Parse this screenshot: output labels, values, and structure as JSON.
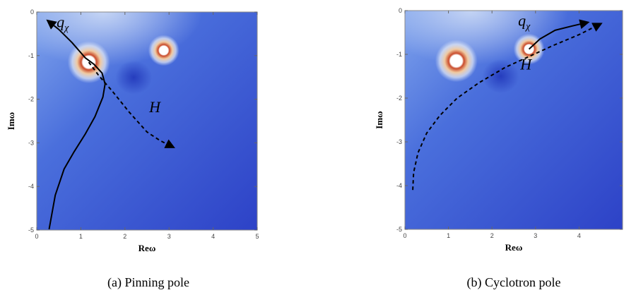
{
  "chart_data": [
    {
      "type": "heatmap",
      "caption": "(a) Pinning pole",
      "xlabel": "Reω",
      "ylabel": "Imω",
      "xlim": [
        0,
        5
      ],
      "ylim": [
        -5,
        0
      ],
      "xticks": [
        "0",
        "1",
        "2",
        "3",
        "4",
        "5"
      ],
      "yticks": [
        "0",
        "-1",
        "-2",
        "-3",
        "-4",
        "-5"
      ],
      "poles": [
        {
          "x": 1.18,
          "y": -1.15
        },
        {
          "x": 2.88,
          "y": -0.88
        }
      ],
      "dip": {
        "x": 2.2,
        "y": -1.5
      },
      "series": [
        {
          "name": "q_χ",
          "style": "solid",
          "x": [
            0.28,
            0.42,
            0.62,
            0.85,
            1.1,
            1.32,
            1.5,
            1.55,
            1.48,
            1.3,
            1.1,
            0.8,
            0.5,
            0.25
          ],
          "y": [
            -4.98,
            -4.2,
            -3.6,
            -3.2,
            -2.8,
            -2.4,
            -1.95,
            -1.65,
            -1.4,
            -1.2,
            -1.05,
            -0.7,
            -0.4,
            -0.2
          ]
        },
        {
          "name": "H",
          "style": "dashed",
          "x": [
            1.18,
            1.4,
            1.7,
            2.1,
            2.5,
            2.8,
            3.1
          ],
          "y": [
            -1.15,
            -1.45,
            -1.8,
            -2.3,
            -2.75,
            -2.95,
            -3.1
          ]
        }
      ],
      "annotations": [
        {
          "text": "q",
          "sub": "χ",
          "x": 0.45,
          "y": -0.35
        },
        {
          "text": "H",
          "x": 2.55,
          "y": -2.3
        }
      ]
    },
    {
      "type": "heatmap",
      "caption": "(b) Cyclotron pole",
      "xlabel": "Reω",
      "ylabel": "Imω",
      "xlim": [
        0,
        5
      ],
      "ylim": [
        -5,
        0
      ],
      "xticks": [
        "0",
        "1",
        "2",
        "3",
        "4"
      ],
      "yticks": [
        "0",
        "-1",
        "-2",
        "-3",
        "-4",
        "-5"
      ],
      "poles": [
        {
          "x": 1.18,
          "y": -1.15
        },
        {
          "x": 2.85,
          "y": -0.88
        }
      ],
      "dip": {
        "x": 2.2,
        "y": -1.5
      },
      "series": [
        {
          "name": "q_χ",
          "style": "solid",
          "x": [
            2.85,
            3.1,
            3.45,
            3.85,
            4.2
          ],
          "y": [
            -0.88,
            -0.65,
            -0.45,
            -0.35,
            -0.27
          ]
        },
        {
          "name": "H",
          "style": "dashed",
          "x": [
            0.18,
            0.2,
            0.3,
            0.5,
            0.8,
            1.2,
            1.7,
            2.3,
            2.85,
            3.4,
            4.0,
            4.5
          ],
          "y": [
            -4.1,
            -3.7,
            -3.25,
            -2.8,
            -2.4,
            -2.0,
            -1.65,
            -1.3,
            -1.05,
            -0.8,
            -0.55,
            -0.3
          ]
        }
      ],
      "annotations": [
        {
          "text": "q",
          "sub": "χ",
          "x": 2.6,
          "y": -0.35
        },
        {
          "text": "H",
          "x": 2.65,
          "y": -1.35
        }
      ]
    }
  ]
}
